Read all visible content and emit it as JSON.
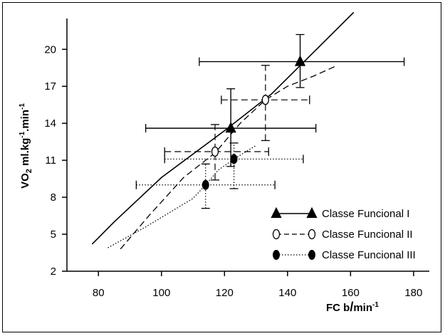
{
  "chart_data": {
    "type": "line",
    "title": "",
    "xlabel_main": "FC b",
    "xlabel_sep": "/",
    "xlabel_unit": "min",
    "xlabel_exp": "-1",
    "ylabel_main": "VO",
    "ylabel_sub": "2",
    "ylabel_mid": " ml.kg",
    "ylabel_exp1": "-1",
    "ylabel_dot": ".min",
    "ylabel_exp2": "-1",
    "xlim": [
      70,
      185
    ],
    "ylim": [
      2,
      22.5
    ],
    "xticks": [
      80,
      100,
      120,
      140,
      160,
      180
    ],
    "yticks": [
      2,
      5,
      8,
      11,
      14,
      17,
      20
    ],
    "grid": false,
    "legend_position": "bottom-right",
    "series": [
      {
        "name": "Classe Funcional I",
        "style": "solid",
        "marker": "filled-triangle",
        "line": [
          [
            78,
            4.2
          ],
          [
            85,
            6.0
          ],
          [
            100,
            9.6
          ],
          [
            120,
            13.4
          ],
          [
            135,
            16.4
          ],
          [
            150,
            20.2
          ],
          [
            161,
            23.0
          ]
        ],
        "points": [
          {
            "x": 122,
            "y": 13.6,
            "xerr": [
              95,
              149
            ],
            "yerr": [
              10.5,
              16.8
            ]
          },
          {
            "x": 144,
            "y": 19.0,
            "xerr": [
              112,
              177
            ],
            "yerr": [
              16.9,
              21.2
            ]
          }
        ]
      },
      {
        "name": "Classe Funcional II",
        "style": "dashed",
        "marker": "open-circle",
        "line": [
          [
            87,
            3.8
          ],
          [
            96,
            6.5
          ],
          [
            107,
            9.6
          ],
          [
            117,
            11.6
          ],
          [
            125,
            14.0
          ],
          [
            133,
            15.9
          ],
          [
            140,
            17.0
          ],
          [
            148,
            17.8
          ],
          [
            155,
            18.6
          ]
        ],
        "points": [
          {
            "x": 117,
            "y": 11.7,
            "xerr": [
              101,
              134
            ],
            "yerr": [
              9.4,
              13.9
            ]
          },
          {
            "x": 133,
            "y": 15.9,
            "xerr": [
              119,
              147
            ],
            "yerr": [
              12.6,
              18.7
            ]
          }
        ]
      },
      {
        "name": "Classe Funcional III",
        "style": "dotted",
        "marker": "filled-circle",
        "line": [
          [
            83,
            3.9
          ],
          [
            95,
            5.6
          ],
          [
            110,
            7.9
          ],
          [
            114,
            9.0
          ],
          [
            118,
            10.2
          ],
          [
            123,
            11.1
          ],
          [
            130,
            12.2
          ]
        ],
        "points": [
          {
            "x": 114,
            "y": 9.0,
            "xerr": [
              92,
              136
            ],
            "yerr": [
              7.1,
              10.7
            ]
          },
          {
            "x": 123,
            "y": 11.1,
            "xerr": [
              101,
              145
            ],
            "yerr": [
              8.7,
              12.4
            ]
          }
        ]
      }
    ]
  }
}
